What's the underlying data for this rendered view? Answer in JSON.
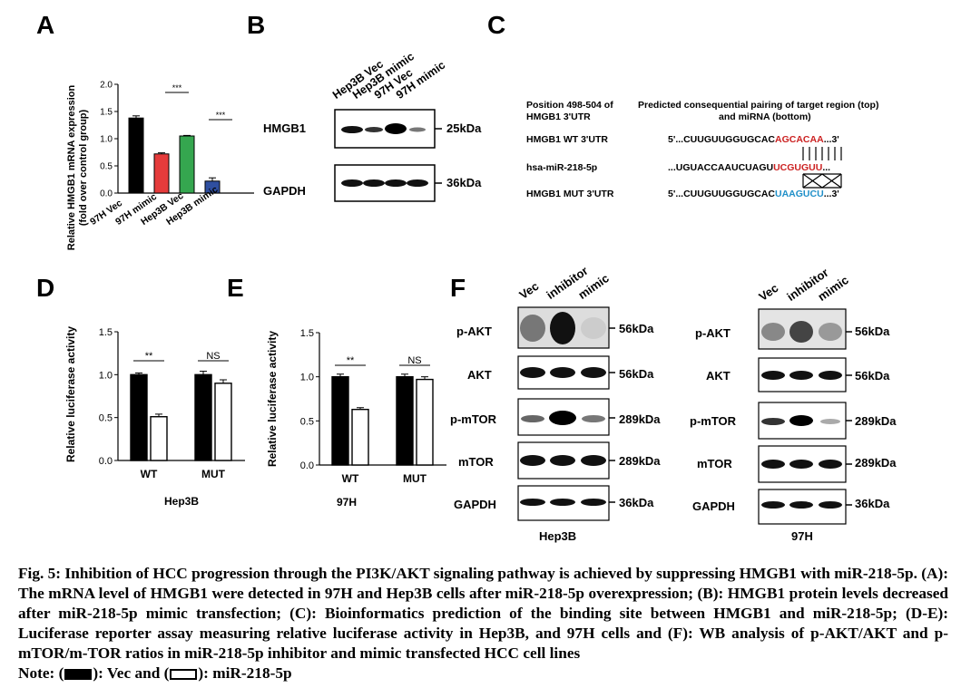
{
  "panels": {
    "A": "A",
    "B": "B",
    "C": "C",
    "D": "D",
    "E": "E",
    "F": "F"
  },
  "panelA": {
    "ylabel_line1": "Relative HMGB1 mRNA expression",
    "ylabel_line2": "(fold over control group)",
    "yticks": [
      "0.0",
      "0.5",
      "1.0",
      "1.5",
      "2.0"
    ],
    "sig1": "***",
    "sig2": "***"
  },
  "panelB": {
    "lanes": [
      "Hep3B Vec",
      "Hep3B mimic",
      "97H Vec",
      "97H mimic"
    ],
    "rows": [
      {
        "protein": "HMGB1",
        "kda": "25kDa"
      },
      {
        "protein": "GAPDH",
        "kda": "36kDa"
      }
    ]
  },
  "panelC": {
    "header_left_1": "Position 498-504 of",
    "header_left_2": "HMGB1 3'UTR",
    "header_right_1": "Predicted consequential pairing of target region (top)",
    "header_right_2": "and miRNA (bottom)",
    "wt_label": "HMGB1 WT 3'UTR",
    "wt_prefix": "5'...CUUGUUGGUGCAC",
    "wt_site": "AGCACAA",
    "wt_suffix": "...3'",
    "mir_label": "hsa-miR-218-5p",
    "mir_prefix": "...UGUACCAAUCUAGU",
    "mir_site": "UCGUGUU",
    "mir_suffix": "...",
    "mut_label": "HMGB1 MUT 3'UTR",
    "mut_prefix": "5'...CUUGUUGGUGCAC",
    "mut_site": "UAAGUCU",
    "mut_suffix": "...3'"
  },
  "panelD": {
    "ylabel": "Relative luciferase activity",
    "yticks": [
      "0.0",
      "0.5",
      "1.0",
      "1.5"
    ],
    "groups": [
      "WT",
      "MUT"
    ],
    "sig_wt": "**",
    "sig_mut": "NS",
    "xtitle": "Hep3B"
  },
  "panelE": {
    "ylabel": "Relative luciferase activity",
    "yticks": [
      "0.0",
      "0.5",
      "1.0",
      "1.5"
    ],
    "groups": [
      "WT",
      "MUT"
    ],
    "sig_wt": "**",
    "sig_mut": "NS",
    "xtitle": "97H"
  },
  "panelF": {
    "lanes": [
      "Vec",
      "inhibitor",
      "mimic"
    ],
    "rows": [
      {
        "protein": "p-AKT",
        "kda": "56kDa"
      },
      {
        "protein": "AKT",
        "kda": "56kDa"
      },
      {
        "protein": "p-mTOR",
        "kda": "289kDa"
      },
      {
        "protein": "mTOR",
        "kda": "289kDa"
      },
      {
        "protein": "GAPDH",
        "kda": "36kDa"
      }
    ],
    "cell_left": "Hep3B",
    "cell_right": "97H"
  },
  "chart_data": [
    {
      "type": "bar",
      "panel": "A",
      "categories": [
        "97H Vec",
        "97H mimic",
        "Hep3B Vec",
        "Hep3B mimic"
      ],
      "values": [
        1.38,
        0.72,
        1.05,
        0.22
      ],
      "errors": [
        0.04,
        0.02,
        0.01,
        0.06
      ],
      "colors": [
        "#000000",
        "#e53b3b",
        "#35a64f",
        "#2f4fa0"
      ],
      "ylabel": "Relative HMGB1 mRNA expression (fold over control group)",
      "ylim": [
        0,
        2.0
      ]
    },
    {
      "type": "bar",
      "panel": "D",
      "categories": [
        "WT",
        "MUT"
      ],
      "series": [
        {
          "values": [
            1.0,
            0.51
          ],
          "errors": [
            0.02,
            0.03
          ]
        },
        {
          "values": [
            1.0,
            0.9
          ],
          "errors": [
            0.04,
            0.04
          ]
        }
      ],
      "ylabel": "Relative luciferase activity",
      "xlabel": "Hep3B",
      "ylim": [
        0,
        1.5
      ]
    },
    {
      "type": "bar",
      "panel": "E",
      "categories": [
        "WT",
        "MUT"
      ],
      "series": [
        {
          "values": [
            1.0,
            0.63
          ],
          "errors": [
            0.03,
            0.02
          ]
        },
        {
          "values": [
            1.0,
            0.97
          ],
          "errors": [
            0.03,
            0.03
          ]
        }
      ],
      "ylabel": "Relative luciferase activity",
      "xlabel": "97H",
      "ylim": [
        0,
        1.5
      ]
    }
  ],
  "caption": {
    "text": "Fig. 5: Inhibition of HCC progression through the PI3K/AKT signaling pathway is achieved by suppressing HMGB1 with miR-218-5p. (A): The mRNA level of HMGB1 were detected in 97H and Hep3B cells after miR-218-5p overexpression; (B): HMGB1 protein levels decreased after miR-218-5p mimic transfection; (C): Bioinformatics prediction of the binding site between HMGB1 and miR-218-5p; (D-E): Luciferase reporter assay measuring relative luciferase activity in Hep3B, and 97H cells and (F): WB analysis of p-AKT/AKT and p-mTOR/m-TOR ratios in miR-218-5p inhibitor and mimic transfected HCC cell lines",
    "note_prefix": "Note: (",
    "note_mid": "): Vec and (",
    "note_suffix": "): miR-218-5p"
  }
}
